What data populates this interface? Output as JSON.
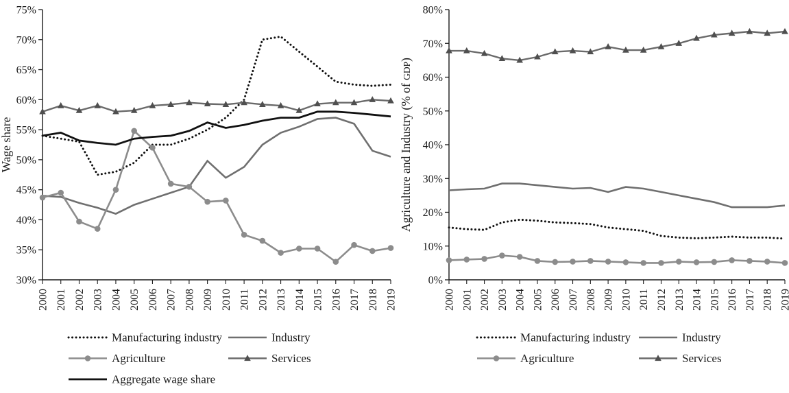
{
  "figure": {
    "background": "#ffffff",
    "text_color": "#1a1a1a",
    "axis_color": "#1a1a1a"
  },
  "chart_data": [
    {
      "id": "left",
      "type": "line",
      "title": "",
      "xlabel": "",
      "ylabel": "Wage share",
      "ylabel_parts": [
        {
          "text": "Wage share"
        }
      ],
      "ylim": [
        30,
        75
      ],
      "grid": false,
      "legend_position": "bottom",
      "legend_columns": 2,
      "yticks": [
        {
          "value": 75,
          "label": "75%"
        },
        {
          "value": 70,
          "label": "70%"
        },
        {
          "value": 65,
          "label": "65%"
        },
        {
          "value": 60,
          "label": "60%"
        },
        {
          "value": 55,
          "label": "55%"
        },
        {
          "value": 50,
          "label": "50%"
        },
        {
          "value": 45,
          "label": "45%"
        },
        {
          "value": 40,
          "label": "40%"
        },
        {
          "value": 35,
          "label": "35%"
        },
        {
          "value": 30,
          "label": "30%"
        }
      ],
      "categories": [
        "2000",
        "2001",
        "2002",
        "2003",
        "2004",
        "2005",
        "2006",
        "2007",
        "2008",
        "2009",
        "2010",
        "2011",
        "2012",
        "2013",
        "2014",
        "2015",
        "2016",
        "2017",
        "2018",
        "2019"
      ],
      "series": [
        {
          "name": "Manufacturing industry",
          "slug": "manufacturing-industry",
          "color": "#111111",
          "dash": "0.1 5.4",
          "marker": "none",
          "width": 3,
          "values": [
            54,
            53.5,
            53,
            47.5,
            48,
            49.5,
            52.5,
            52.5,
            53.5,
            55,
            57,
            60,
            70,
            70.5,
            68,
            65.5,
            63,
            62.5,
            62.3,
            62.5
          ]
        },
        {
          "name": "Industry",
          "slug": "industry",
          "color": "#6f6f6f",
          "dash": "",
          "marker": "none",
          "width": 2.6,
          "values": [
            44,
            43.8,
            42.8,
            42,
            41,
            42.5,
            43.5,
            44.5,
            45.5,
            49.8,
            47,
            48.8,
            52.5,
            54.5,
            55.5,
            56.8,
            57,
            56,
            51.5,
            50.5
          ]
        },
        {
          "name": "Agriculture",
          "slug": "agriculture",
          "color": "#8c8c8c",
          "dash": "",
          "marker": "circle",
          "width": 2.6,
          "values": [
            43.7,
            44.5,
            39.7,
            38.5,
            45,
            54.8,
            52,
            46,
            45.5,
            43,
            43.2,
            37.5,
            36.5,
            34.5,
            35.2,
            35.2,
            33,
            35.8,
            34.8,
            35.3
          ]
        },
        {
          "name": "Services",
          "slug": "services",
          "color": "#6a6a6a",
          "dash": "",
          "marker": "triangle",
          "marker_color": "#4f4f4f",
          "width": 2.4,
          "values": [
            58,
            59,
            58.2,
            59,
            58,
            58.2,
            59,
            59.2,
            59.5,
            59.3,
            59.2,
            59.5,
            59.2,
            59,
            58.2,
            59.3,
            59.5,
            59.5,
            60,
            59.8
          ]
        },
        {
          "name": "Aggregate wage share",
          "slug": "aggregate-wage-share",
          "color": "#111111",
          "dash": "",
          "marker": "none",
          "width": 2.8,
          "values": [
            54,
            54.5,
            53.2,
            52.8,
            52.5,
            53.5,
            53.8,
            54,
            54.8,
            56.2,
            55.3,
            55.8,
            56.5,
            57,
            57,
            58,
            58,
            57.8,
            57.5,
            57.2
          ]
        }
      ]
    },
    {
      "id": "right",
      "type": "line",
      "title": "",
      "xlabel": "",
      "ylabel": "Agriculture and Industry (% of GDP)",
      "ylabel_parts": [
        {
          "text": "Agriculture and Industry (% of "
        },
        {
          "text": "GDP",
          "small_caps": true
        },
        {
          "text": ")"
        }
      ],
      "ylim": [
        0,
        80
      ],
      "grid": false,
      "legend_position": "bottom",
      "legend_columns": 2,
      "yticks": [
        {
          "value": 80,
          "label": "80%"
        },
        {
          "value": 70,
          "label": "70%"
        },
        {
          "value": 60,
          "label": "60%"
        },
        {
          "value": 50,
          "label": "50%"
        },
        {
          "value": 40,
          "label": "40%"
        },
        {
          "value": 30,
          "label": "30%"
        },
        {
          "value": 20,
          "label": "20%"
        },
        {
          "value": 10,
          "label": "10%"
        },
        {
          "value": 0,
          "label": "0%"
        }
      ],
      "categories": [
        "2000",
        "2001",
        "2002",
        "2003",
        "2004",
        "2005",
        "2006",
        "2007",
        "2008",
        "2009",
        "2010",
        "2011",
        "2012",
        "2013",
        "2014",
        "2015",
        "2016",
        "2017",
        "2018",
        "2019"
      ],
      "series": [
        {
          "name": "Manufacturing industry",
          "slug": "manufacturing-industry",
          "color": "#111111",
          "dash": "0.1 5.4",
          "marker": "none",
          "width": 3,
          "values": [
            15.5,
            15,
            14.8,
            17,
            17.8,
            17.5,
            17,
            16.8,
            16.5,
            15.5,
            15,
            14.5,
            13,
            12.5,
            12.3,
            12.5,
            12.8,
            12.5,
            12.5,
            12.2
          ]
        },
        {
          "name": "Industry",
          "slug": "industry",
          "color": "#6f6f6f",
          "dash": "",
          "marker": "none",
          "width": 2.6,
          "values": [
            26.5,
            26.8,
            27,
            28.5,
            28.5,
            28,
            27.5,
            27,
            27.2,
            26,
            27.5,
            27,
            26,
            25,
            24,
            23,
            21.5,
            21.5,
            21.5,
            22
          ]
        },
        {
          "name": "Agriculture",
          "slug": "agriculture",
          "color": "#8c8c8c",
          "dash": "",
          "marker": "circle",
          "width": 2.6,
          "values": [
            5.8,
            6,
            6.2,
            7.2,
            6.8,
            5.6,
            5.3,
            5.4,
            5.6,
            5.4,
            5.2,
            5,
            5,
            5.4,
            5.2,
            5.3,
            5.8,
            5.6,
            5.4,
            5
          ]
        },
        {
          "name": "Services",
          "slug": "services",
          "color": "#6a6a6a",
          "dash": "",
          "marker": "triangle",
          "marker_color": "#4f4f4f",
          "width": 2.4,
          "values": [
            67.8,
            67.8,
            67,
            65.5,
            65,
            66,
            67.5,
            67.8,
            67.5,
            69,
            68,
            68,
            69,
            70,
            71.5,
            72.5,
            73,
            73.5,
            73,
            73.5
          ]
        }
      ]
    }
  ]
}
